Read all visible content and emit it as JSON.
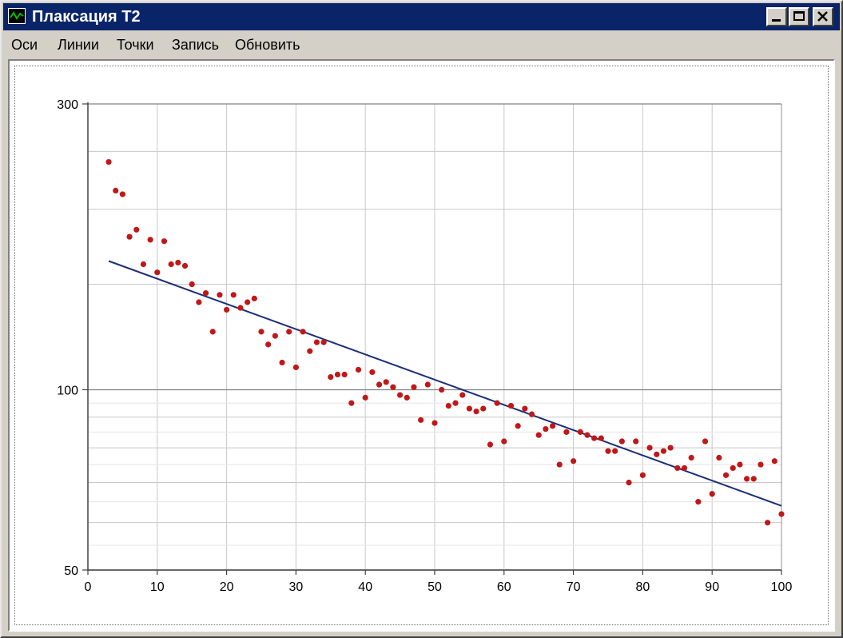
{
  "window": {
    "title": "Плаксация Т2",
    "controls": {
      "minimize": "minimize",
      "maximize": "maximize",
      "close": "close"
    }
  },
  "menu": {
    "items": [
      {
        "id": "axes",
        "label": "Оси"
      },
      {
        "id": "lines",
        "label": "Линии"
      },
      {
        "id": "points",
        "label": "Точки"
      },
      {
        "id": "record",
        "label": "Запись"
      },
      {
        "id": "refresh",
        "label": "Обновить"
      }
    ]
  },
  "colors": {
    "title_bar": "#0a246a",
    "points": "#c01818",
    "fit_line": "#1c2e78",
    "grid": "#c8c8c8",
    "axis": "#404040"
  },
  "chart_data": {
    "type": "scatter",
    "title": "",
    "xlabel": "",
    "ylabel": "",
    "x_ticks": [
      0,
      10,
      20,
      30,
      40,
      50,
      60,
      70,
      80,
      90,
      100
    ],
    "y_ticks": [
      50,
      100,
      300
    ],
    "xlim": [
      0,
      100
    ],
    "ylim": [
      50,
      300
    ],
    "y_scale": "log",
    "grid": true,
    "legend": "none",
    "series": [
      {
        "kind": "points",
        "x": [
          3,
          4,
          5,
          6,
          7,
          8,
          9,
          10,
          11,
          12,
          13,
          14,
          15,
          16,
          17,
          18,
          19,
          20,
          21,
          22,
          23,
          24,
          25,
          26,
          27,
          28,
          29,
          30,
          31,
          32,
          33,
          34,
          35,
          36,
          37,
          38,
          39,
          40,
          41,
          42,
          43,
          44,
          45,
          46,
          47,
          48,
          49,
          50,
          51,
          52,
          53,
          54,
          55,
          56,
          57,
          58,
          59,
          60,
          61,
          62,
          63,
          64,
          65,
          66,
          67,
          68,
          69,
          70,
          71,
          72,
          73,
          74,
          75,
          76,
          77,
          78,
          79,
          80,
          81,
          82,
          83,
          84,
          85,
          86,
          87,
          88,
          89,
          90,
          91,
          92,
          93,
          94,
          95,
          96,
          97,
          98,
          99,
          100
        ],
        "y": [
          240,
          215,
          212,
          180,
          185,
          162,
          178,
          157,
          177,
          162,
          163,
          161,
          150,
          140,
          145,
          125,
          144,
          136,
          144,
          137,
          140,
          142,
          125,
          119,
          123,
          111,
          125,
          109,
          125,
          116,
          120,
          120,
          105,
          106,
          106,
          95,
          108,
          97,
          107,
          102,
          103,
          101,
          98,
          97,
          101,
          89,
          102,
          88,
          100,
          94,
          95,
          98,
          93,
          92,
          93,
          81,
          95,
          82,
          94,
          87,
          93,
          91,
          84,
          86,
          87,
          75,
          85,
          76,
          85,
          84,
          83,
          83,
          79,
          79,
          82,
          70,
          82,
          72,
          80,
          78,
          79,
          80,
          74,
          74,
          77,
          65,
          82,
          67,
          77,
          72,
          74,
          75,
          71,
          71,
          75,
          60,
          76,
          62
        ]
      },
      {
        "kind": "fit-line",
        "x": [
          3,
          100
        ],
        "y": [
          164,
          64
        ]
      }
    ]
  }
}
